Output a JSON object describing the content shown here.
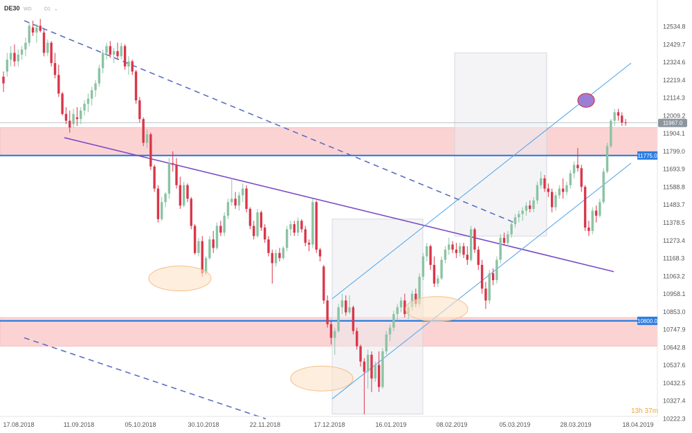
{
  "header": {
    "symbol": "DE30",
    "interval_a": "WD",
    "interval_b": "D1"
  },
  "countdown": "13h 37m",
  "colors": {
    "bull": "#8bc3a3",
    "bear": "#d9364a",
    "zone_fill": "#fcd3d3",
    "level_line": "#2a7de1",
    "trend_line": "#7b4bc4",
    "channel_line": "#5aa9e8",
    "dashed_line": "#5a6fc0",
    "box_fill": "#ebebf0",
    "ellipse_fill": "#fde3c8",
    "ellipse_stroke": "#f3bf86",
    "target_fill": "#9b7fd6",
    "target_stroke": "#d9364a"
  },
  "chart_data": {
    "type": "candlestick",
    "symbol": "DE30",
    "y_axis": {
      "ticks": [
        "12534.8",
        "12429.7",
        "12324.6",
        "12219.4",
        "12114.3",
        "12009.2",
        "11904.1",
        "11799.0",
        "11693.9",
        "11588.8",
        "11483.7",
        "11378.5",
        "11273.4",
        "11168.3",
        "11063.2",
        "10958.1",
        "10853.0",
        "10747.9",
        "10642.8",
        "10537.6",
        "10432.5",
        "10327.4",
        "10222.3"
      ],
      "ylim": [
        10222.3,
        12534.8
      ]
    },
    "x_axis": {
      "ticks": [
        "17.08.2018",
        "11.09.2018",
        "05.10.2018",
        "30.10.2018",
        "22.11.2018",
        "17.12.2018",
        "16.01.2019",
        "08.02.2019",
        "05.03.2019",
        "28.03.2019",
        "18.04.2019"
      ]
    },
    "price_tags": [
      {
        "label": "11967.0",
        "value": 11967.0,
        "style": "last"
      },
      {
        "label": "11775.0",
        "value": 11775.0,
        "style": "level"
      },
      {
        "label": "10800.0",
        "value": 10800.0,
        "style": "level"
      }
    ],
    "zones": [
      {
        "from": 11775,
        "to": 11940
      },
      {
        "from": 10650,
        "to": 10820
      }
    ],
    "candles": [
      {
        "o": 12240,
        "h": 12270,
        "l": 12150,
        "c": 12200
      },
      {
        "o": 12270,
        "h": 12380,
        "l": 12240,
        "c": 12340
      },
      {
        "o": 12340,
        "h": 12420,
        "l": 12300,
        "c": 12380
      },
      {
        "o": 12380,
        "h": 12430,
        "l": 12300,
        "c": 12330
      },
      {
        "o": 12330,
        "h": 12400,
        "l": 12300,
        "c": 12370
      },
      {
        "o": 12370,
        "h": 12420,
        "l": 12340,
        "c": 12400
      },
      {
        "o": 12400,
        "h": 12470,
        "l": 12360,
        "c": 12440
      },
      {
        "o": 12440,
        "h": 12560,
        "l": 12420,
        "c": 12540
      },
      {
        "o": 12530,
        "h": 12570,
        "l": 12480,
        "c": 12500
      },
      {
        "o": 12500,
        "h": 12550,
        "l": 12440,
        "c": 12530
      },
      {
        "o": 12540,
        "h": 12580,
        "l": 12500,
        "c": 12510
      },
      {
        "o": 12500,
        "h": 12520,
        "l": 12360,
        "c": 12380
      },
      {
        "o": 12380,
        "h": 12460,
        "l": 12360,
        "c": 12440
      },
      {
        "o": 12440,
        "h": 12450,
        "l": 12300,
        "c": 12320
      },
      {
        "o": 12320,
        "h": 12380,
        "l": 12230,
        "c": 12250
      },
      {
        "o": 12250,
        "h": 12310,
        "l": 12120,
        "c": 12140
      },
      {
        "o": 12140,
        "h": 12150,
        "l": 12010,
        "c": 12020
      },
      {
        "o": 12020,
        "h": 12060,
        "l": 11960,
        "c": 11980
      },
      {
        "o": 11980,
        "h": 12040,
        "l": 11910,
        "c": 11940
      },
      {
        "o": 11960,
        "h": 12050,
        "l": 11940,
        "c": 12020
      },
      {
        "o": 12000,
        "h": 12060,
        "l": 11950,
        "c": 11990
      },
      {
        "o": 11990,
        "h": 12060,
        "l": 11960,
        "c": 12040
      },
      {
        "o": 12040,
        "h": 12100,
        "l": 12010,
        "c": 12080
      },
      {
        "o": 12080,
        "h": 12140,
        "l": 12030,
        "c": 12110
      },
      {
        "o": 12110,
        "h": 12180,
        "l": 12070,
        "c": 12160
      },
      {
        "o": 12160,
        "h": 12220,
        "l": 12120,
        "c": 12200
      },
      {
        "o": 12200,
        "h": 12310,
        "l": 12180,
        "c": 12290
      },
      {
        "o": 12290,
        "h": 12400,
        "l": 12260,
        "c": 12380
      },
      {
        "o": 12380,
        "h": 12440,
        "l": 12340,
        "c": 12420
      },
      {
        "o": 12420,
        "h": 12450,
        "l": 12350,
        "c": 12370
      },
      {
        "o": 12370,
        "h": 12410,
        "l": 12320,
        "c": 12390
      },
      {
        "o": 12390,
        "h": 12440,
        "l": 12340,
        "c": 12360
      },
      {
        "o": 12360,
        "h": 12440,
        "l": 12340,
        "c": 12420
      },
      {
        "o": 12420,
        "h": 12430,
        "l": 12280,
        "c": 12300
      },
      {
        "o": 12300,
        "h": 12360,
        "l": 12250,
        "c": 12330
      },
      {
        "o": 12330,
        "h": 12340,
        "l": 12250,
        "c": 12270
      },
      {
        "o": 12270,
        "h": 12280,
        "l": 12080,
        "c": 12100
      },
      {
        "o": 12100,
        "h": 12120,
        "l": 11970,
        "c": 11990
      },
      {
        "o": 11990,
        "h": 12000,
        "l": 11830,
        "c": 11850
      },
      {
        "o": 11850,
        "h": 11930,
        "l": 11820,
        "c": 11900
      },
      {
        "o": 11900,
        "h": 11910,
        "l": 11690,
        "c": 11710
      },
      {
        "o": 11710,
        "h": 11720,
        "l": 11560,
        "c": 11580
      },
      {
        "o": 11580,
        "h": 11600,
        "l": 11380,
        "c": 11400
      },
      {
        "o": 11400,
        "h": 11530,
        "l": 11390,
        "c": 11500
      },
      {
        "o": 11500,
        "h": 11560,
        "l": 11470,
        "c": 11550
      },
      {
        "o": 11550,
        "h": 11760,
        "l": 11520,
        "c": 11730
      },
      {
        "o": 11730,
        "h": 11800,
        "l": 11680,
        "c": 11720
      },
      {
        "o": 11720,
        "h": 11760,
        "l": 11580,
        "c": 11600
      },
      {
        "o": 11600,
        "h": 11650,
        "l": 11460,
        "c": 11480
      },
      {
        "o": 11480,
        "h": 11620,
        "l": 11470,
        "c": 11600
      },
      {
        "o": 11600,
        "h": 11610,
        "l": 11500,
        "c": 11520
      },
      {
        "o": 11520,
        "h": 11530,
        "l": 11340,
        "c": 11360
      },
      {
        "o": 11360,
        "h": 11370,
        "l": 11190,
        "c": 11200
      },
      {
        "o": 11200,
        "h": 11290,
        "l": 11180,
        "c": 11270
      },
      {
        "o": 11270,
        "h": 11300,
        "l": 11060,
        "c": 11080
      },
      {
        "o": 11080,
        "h": 11180,
        "l": 11070,
        "c": 11170
      },
      {
        "o": 11170,
        "h": 11300,
        "l": 11160,
        "c": 11280
      },
      {
        "o": 11280,
        "h": 11330,
        "l": 11200,
        "c": 11230
      },
      {
        "o": 11230,
        "h": 11380,
        "l": 11220,
        "c": 11360
      },
      {
        "o": 11360,
        "h": 11390,
        "l": 11300,
        "c": 11320
      },
      {
        "o": 11320,
        "h": 11440,
        "l": 11300,
        "c": 11420
      },
      {
        "o": 11420,
        "h": 11520,
        "l": 11400,
        "c": 11500
      },
      {
        "o": 11500,
        "h": 11640,
        "l": 11480,
        "c": 11520
      },
      {
        "o": 11520,
        "h": 11560,
        "l": 11460,
        "c": 11480
      },
      {
        "o": 11480,
        "h": 11560,
        "l": 11450,
        "c": 11540
      },
      {
        "o": 11540,
        "h": 11610,
        "l": 11500,
        "c": 11580
      },
      {
        "o": 11580,
        "h": 11600,
        "l": 11440,
        "c": 11460
      },
      {
        "o": 11460,
        "h": 11470,
        "l": 11340,
        "c": 11360
      },
      {
        "o": 11360,
        "h": 11390,
        "l": 11280,
        "c": 11300
      },
      {
        "o": 11300,
        "h": 11460,
        "l": 11290,
        "c": 11440
      },
      {
        "o": 11440,
        "h": 11450,
        "l": 11330,
        "c": 11350
      },
      {
        "o": 11350,
        "h": 11370,
        "l": 11260,
        "c": 11280
      },
      {
        "o": 11280,
        "h": 11300,
        "l": 11180,
        "c": 11200
      },
      {
        "o": 11200,
        "h": 11220,
        "l": 11020,
        "c": 11140
      },
      {
        "o": 11140,
        "h": 11220,
        "l": 11120,
        "c": 11200
      },
      {
        "o": 11200,
        "h": 11230,
        "l": 11150,
        "c": 11170
      },
      {
        "o": 11170,
        "h": 11240,
        "l": 11160,
        "c": 11230
      },
      {
        "o": 11230,
        "h": 11360,
        "l": 11210,
        "c": 11340
      },
      {
        "o": 11340,
        "h": 11390,
        "l": 11300,
        "c": 11370
      },
      {
        "o": 11370,
        "h": 11390,
        "l": 11300,
        "c": 11320
      },
      {
        "o": 11320,
        "h": 11410,
        "l": 11300,
        "c": 11390
      },
      {
        "o": 11390,
        "h": 11400,
        "l": 11320,
        "c": 11340
      },
      {
        "o": 11340,
        "h": 11360,
        "l": 11240,
        "c": 11260
      },
      {
        "o": 11260,
        "h": 11280,
        "l": 11210,
        "c": 11250
      },
      {
        "o": 11250,
        "h": 11520,
        "l": 11230,
        "c": 11500
      },
      {
        "o": 11500,
        "h": 11510,
        "l": 11200,
        "c": 11220
      },
      {
        "o": 11220,
        "h": 11230,
        "l": 11150,
        "c": 11180
      },
      {
        "o": 11120,
        "h": 11130,
        "l": 10900,
        "c": 10920
      },
      {
        "o": 10920,
        "h": 10950,
        "l": 10760,
        "c": 10780
      },
      {
        "o": 10780,
        "h": 10800,
        "l": 10660,
        "c": 10700
      },
      {
        "o": 10700,
        "h": 10760,
        "l": 10600,
        "c": 10740
      },
      {
        "o": 10740,
        "h": 10900,
        "l": 10730,
        "c": 10880
      },
      {
        "o": 10880,
        "h": 10960,
        "l": 10840,
        "c": 10920
      },
      {
        "o": 10920,
        "h": 10950,
        "l": 10830,
        "c": 10850
      },
      {
        "o": 10850,
        "h": 10950,
        "l": 10840,
        "c": 10880
      },
      {
        "o": 10880,
        "h": 10890,
        "l": 10720,
        "c": 10740
      },
      {
        "o": 10740,
        "h": 10760,
        "l": 10630,
        "c": 10650
      },
      {
        "o": 10650,
        "h": 10660,
        "l": 10530,
        "c": 10560
      },
      {
        "o": 10560,
        "h": 10580,
        "l": 10250,
        "c": 10500
      },
      {
        "o": 10500,
        "h": 10630,
        "l": 10400,
        "c": 10600
      },
      {
        "o": 10600,
        "h": 10620,
        "l": 10380,
        "c": 10460
      },
      {
        "o": 10460,
        "h": 10560,
        "l": 10440,
        "c": 10540
      },
      {
        "o": 10540,
        "h": 10620,
        "l": 10380,
        "c": 10410
      },
      {
        "o": 10410,
        "h": 10640,
        "l": 10400,
        "c": 10620
      },
      {
        "o": 10620,
        "h": 10740,
        "l": 10600,
        "c": 10720
      },
      {
        "o": 10720,
        "h": 10780,
        "l": 10680,
        "c": 10760
      },
      {
        "o": 10760,
        "h": 10860,
        "l": 10740,
        "c": 10840
      },
      {
        "o": 10840,
        "h": 10900,
        "l": 10800,
        "c": 10880
      },
      {
        "o": 10880,
        "h": 10940,
        "l": 10850,
        "c": 10920
      },
      {
        "o": 10920,
        "h": 10960,
        "l": 10820,
        "c": 10840
      },
      {
        "o": 10840,
        "h": 10900,
        "l": 10810,
        "c": 10880
      },
      {
        "o": 10880,
        "h": 10980,
        "l": 10860,
        "c": 10960
      },
      {
        "o": 10960,
        "h": 10990,
        "l": 10880,
        "c": 10900
      },
      {
        "o": 10900,
        "h": 11080,
        "l": 10880,
        "c": 11060
      },
      {
        "o": 11060,
        "h": 11200,
        "l": 11040,
        "c": 11180
      },
      {
        "o": 11180,
        "h": 11260,
        "l": 11150,
        "c": 11240
      },
      {
        "o": 11240,
        "h": 11250,
        "l": 11100,
        "c": 11130
      },
      {
        "o": 11130,
        "h": 11180,
        "l": 11000,
        "c": 11020
      },
      {
        "o": 11020,
        "h": 11070,
        "l": 11000,
        "c": 11050
      },
      {
        "o": 11050,
        "h": 11180,
        "l": 11040,
        "c": 11160
      },
      {
        "o": 11160,
        "h": 11240,
        "l": 11140,
        "c": 11220
      },
      {
        "o": 11220,
        "h": 11290,
        "l": 11190,
        "c": 11250
      },
      {
        "o": 11250,
        "h": 11270,
        "l": 11200,
        "c": 11220
      },
      {
        "o": 11220,
        "h": 11260,
        "l": 11170,
        "c": 11200
      },
      {
        "o": 11200,
        "h": 11260,
        "l": 11180,
        "c": 11240
      },
      {
        "o": 11240,
        "h": 11260,
        "l": 11170,
        "c": 11190
      },
      {
        "o": 11190,
        "h": 11240,
        "l": 11130,
        "c": 11160
      },
      {
        "o": 11160,
        "h": 11360,
        "l": 11150,
        "c": 11340
      },
      {
        "o": 11340,
        "h": 11350,
        "l": 11200,
        "c": 11220
      },
      {
        "o": 11220,
        "h": 11240,
        "l": 11100,
        "c": 11130
      },
      {
        "o": 11130,
        "h": 11160,
        "l": 10960,
        "c": 10990
      },
      {
        "o": 10990,
        "h": 11030,
        "l": 10870,
        "c": 10920
      },
      {
        "o": 10920,
        "h": 11100,
        "l": 10900,
        "c": 11080
      },
      {
        "o": 11080,
        "h": 11110,
        "l": 11010,
        "c": 11040
      },
      {
        "o": 11040,
        "h": 11180,
        "l": 11020,
        "c": 11160
      },
      {
        "o": 11160,
        "h": 11310,
        "l": 11140,
        "c": 11290
      },
      {
        "o": 11290,
        "h": 11320,
        "l": 11250,
        "c": 11260
      },
      {
        "o": 11260,
        "h": 11330,
        "l": 11240,
        "c": 11310
      },
      {
        "o": 11310,
        "h": 11390,
        "l": 11290,
        "c": 11370
      },
      {
        "o": 11370,
        "h": 11430,
        "l": 11350,
        "c": 11410
      },
      {
        "o": 11410,
        "h": 11450,
        "l": 11380,
        "c": 11430
      },
      {
        "o": 11430,
        "h": 11470,
        "l": 11390,
        "c": 11450
      },
      {
        "o": 11450,
        "h": 11500,
        "l": 11420,
        "c": 11480
      },
      {
        "o": 11480,
        "h": 11510,
        "l": 11440,
        "c": 11460
      },
      {
        "o": 11460,
        "h": 11530,
        "l": 11440,
        "c": 11510
      },
      {
        "o": 11510,
        "h": 11620,
        "l": 11490,
        "c": 11600
      },
      {
        "o": 11600,
        "h": 11680,
        "l": 11580,
        "c": 11640
      },
      {
        "o": 11640,
        "h": 11660,
        "l": 11560,
        "c": 11580
      },
      {
        "o": 11580,
        "h": 11610,
        "l": 11530,
        "c": 11560
      },
      {
        "o": 11560,
        "h": 11580,
        "l": 11440,
        "c": 11470
      },
      {
        "o": 11470,
        "h": 11560,
        "l": 11450,
        "c": 11540
      },
      {
        "o": 11540,
        "h": 11600,
        "l": 11520,
        "c": 11580
      },
      {
        "o": 11580,
        "h": 11640,
        "l": 11520,
        "c": 11560
      },
      {
        "o": 11560,
        "h": 11620,
        "l": 11540,
        "c": 11600
      },
      {
        "o": 11600,
        "h": 11690,
        "l": 11580,
        "c": 11670
      },
      {
        "o": 11670,
        "h": 11740,
        "l": 11640,
        "c": 11720
      },
      {
        "o": 11720,
        "h": 11820,
        "l": 11680,
        "c": 11700
      },
      {
        "o": 11700,
        "h": 11720,
        "l": 11560,
        "c": 11590
      },
      {
        "o": 11590,
        "h": 11600,
        "l": 11330,
        "c": 11350
      },
      {
        "o": 11350,
        "h": 11390,
        "l": 11300,
        "c": 11330
      },
      {
        "o": 11330,
        "h": 11470,
        "l": 11310,
        "c": 11450
      },
      {
        "o": 11450,
        "h": 11480,
        "l": 11380,
        "c": 11420
      },
      {
        "o": 11420,
        "h": 11520,
        "l": 11410,
        "c": 11500
      },
      {
        "o": 11500,
        "h": 11700,
        "l": 11490,
        "c": 11680
      },
      {
        "o": 11680,
        "h": 11850,
        "l": 11670,
        "c": 11830
      },
      {
        "o": 11830,
        "h": 11990,
        "l": 11820,
        "c": 11980
      },
      {
        "o": 11980,
        "h": 12050,
        "l": 11950,
        "c": 12030
      },
      {
        "o": 12030,
        "h": 12050,
        "l": 11980,
        "c": 12010
      },
      {
        "o": 12010,
        "h": 12030,
        "l": 11950,
        "c": 11970
      },
      {
        "o": 11970,
        "h": 11990,
        "l": 11950,
        "c": 11967
      }
    ],
    "drawings": [
      {
        "kind": "dashed_line",
        "p1": [
          "17.08.2018",
          12570
        ],
        "p2": [
          "08.02.2019",
          11380
        ]
      },
      {
        "kind": "dashed_line",
        "p1": [
          "17.08.2018",
          10700
        ],
        "p2": [
          "30.10.2018",
          10222.3
        ]
      },
      {
        "kind": "trend_line",
        "p1": [
          "11.09.2018",
          11880
        ],
        "p2": [
          "18.04.2019",
          11090
        ]
      },
      {
        "kind": "channel_line",
        "p1": [
          "17.12.2018",
          10930
        ],
        "p2": [
          "18.04.2019",
          12320
        ]
      },
      {
        "kind": "channel_line",
        "p1": [
          "17.12.2018",
          10340
        ],
        "p2": [
          "18.04.2019",
          11730
        ]
      },
      {
        "kind": "box",
        "from": [
          "17.12.2018",
          11400
        ],
        "to": [
          "16.01.2019",
          10250
        ]
      },
      {
        "kind": "box",
        "from": [
          "08.02.2019",
          12380
        ],
        "to": [
          "05.03.2019",
          11300
        ]
      },
      {
        "kind": "ellipse",
        "at": [
          "05.10.2018",
          11050
        ]
      },
      {
        "kind": "ellipse",
        "at": [
          "17.12.2018",
          10460
        ]
      },
      {
        "kind": "ellipse",
        "at": [
          "08.02.2019",
          10870
        ]
      },
      {
        "kind": "target_ellipse",
        "at": [
          "28.03.2019",
          12100
        ]
      }
    ]
  }
}
